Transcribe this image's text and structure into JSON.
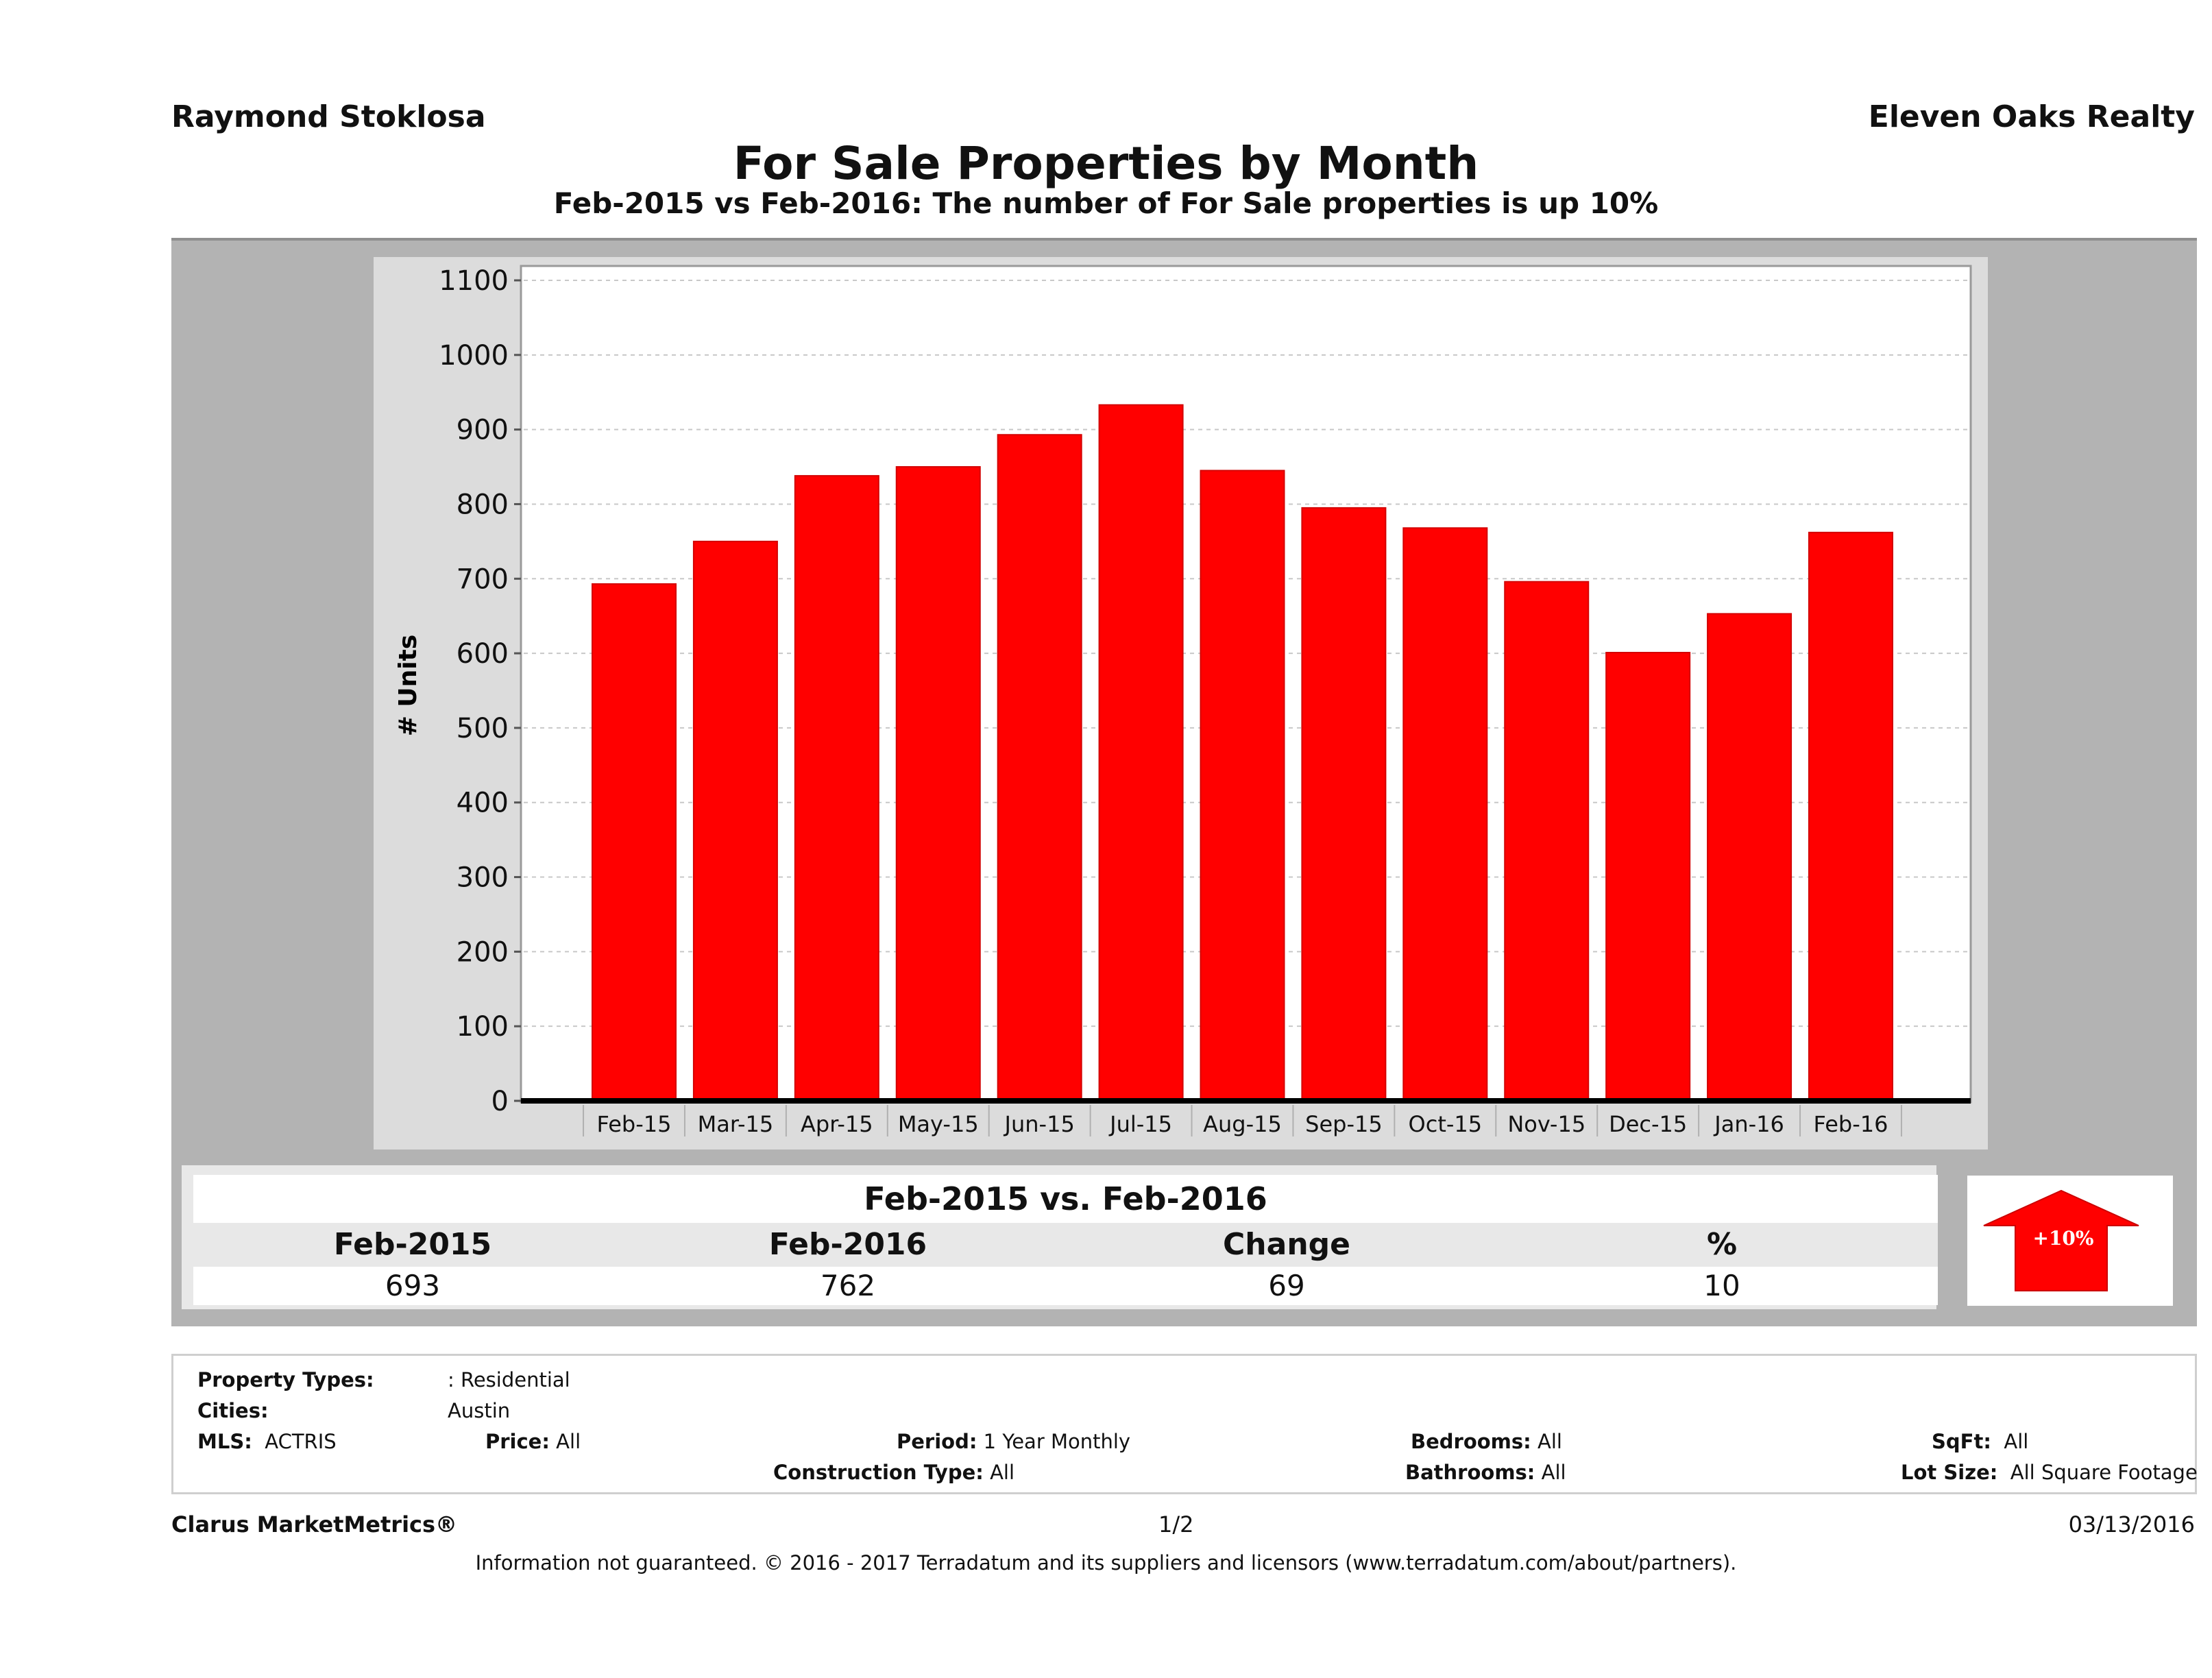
{
  "header": {
    "agent_name": "Raymond Stoklosa",
    "company_name": "Eleven Oaks Realty",
    "title": "For Sale Properties by Month",
    "subtitle": "Feb-2015 vs Feb-2016: The number of For Sale  properties is up 10%"
  },
  "chart_data": {
    "type": "bar",
    "title": "For Sale Properties by Month",
    "xlabel": "",
    "ylabel": "# Units",
    "ylim": [
      0,
      1100
    ],
    "yticks": [
      0,
      100,
      200,
      300,
      400,
      500,
      600,
      700,
      800,
      900,
      1000,
      1100
    ],
    "grid": true,
    "categories": [
      "Feb-15",
      "Mar-15",
      "Apr-15",
      "May-15",
      "Jun-15",
      "Jul-15",
      "Aug-15",
      "Sep-15",
      "Oct-15",
      "Nov-15",
      "Dec-15",
      "Jan-16",
      "Feb-16"
    ],
    "values": [
      693,
      750,
      838,
      850,
      893,
      933,
      845,
      795,
      768,
      696,
      601,
      653,
      762
    ],
    "bar_color": "#ff0000"
  },
  "summary": {
    "heading": "Feb-2015 vs. Feb-2016",
    "columns": [
      "Feb-2015",
      "Feb-2016",
      "Change",
      "%"
    ],
    "values": [
      "693",
      "762",
      "69",
      "10"
    ],
    "badge": {
      "label": "+10%",
      "direction": "up",
      "color": "#ff0000"
    }
  },
  "filters": {
    "property_types": {
      "label": "Property Types:",
      "value": ": Residential"
    },
    "cities": {
      "label": "Cities:",
      "value": "Austin"
    },
    "mls": {
      "label": "MLS:",
      "value": "ACTRIS"
    },
    "price": {
      "label": "Price:",
      "value": "All"
    },
    "period": {
      "label": "Period:",
      "value": "1 Year Monthly"
    },
    "construction_type": {
      "label": "Construction Type:",
      "value": "All"
    },
    "bedrooms": {
      "label": "Bedrooms:",
      "value": "All"
    },
    "bathrooms": {
      "label": "Bathrooms:",
      "value": "All"
    },
    "sqft": {
      "label": "SqFt:",
      "value": "All"
    },
    "lot_size": {
      "label": "Lot Size:",
      "value": "All Square Footage"
    }
  },
  "footer": {
    "brand": "Clarus MarketMetrics®",
    "page": "1/2",
    "date": "03/13/2016",
    "disclaimer": "Information not guaranteed. © 2016 - 2017 Terradatum and its suppliers and licensors (www.terradatum.com/about/partners)."
  }
}
